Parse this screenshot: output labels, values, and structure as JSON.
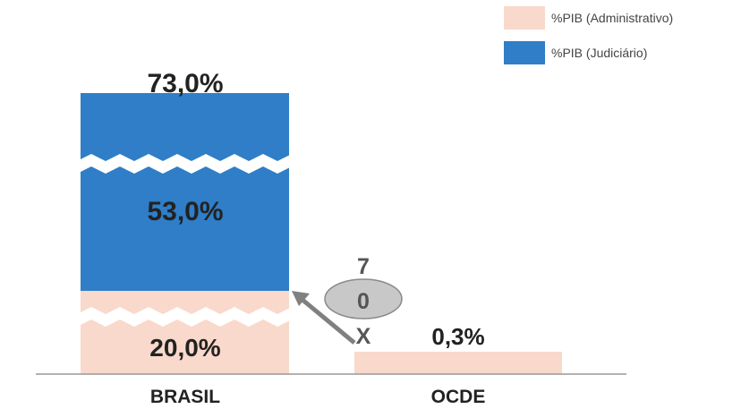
{
  "chart_data": {
    "type": "bar",
    "stacked": true,
    "categories": [
      "BRASIL",
      "OCDE"
    ],
    "series": [
      {
        "name": "%PIB (Administrativo)",
        "values": [
          20.0,
          0.3
        ],
        "color": "#f9d9cb"
      },
      {
        "name": "%PIB (Judiciário)",
        "values": [
          53.0,
          0.0
        ],
        "color": "#2f7ec7"
      }
    ],
    "data_labels": {
      "brasil_total": "73,0%",
      "brasil_judiciario": "53,0%",
      "brasil_administrativo": "20,0%",
      "ocde_administrativo": "0,3%"
    },
    "annotation": {
      "top": "7",
      "middle": "0",
      "bottom": "X",
      "color": "#c8c8c8"
    },
    "axis_break": true,
    "legend_position": "top-right",
    "grid": false,
    "axis_color": "#999999",
    "arrow_color": "#808080"
  }
}
